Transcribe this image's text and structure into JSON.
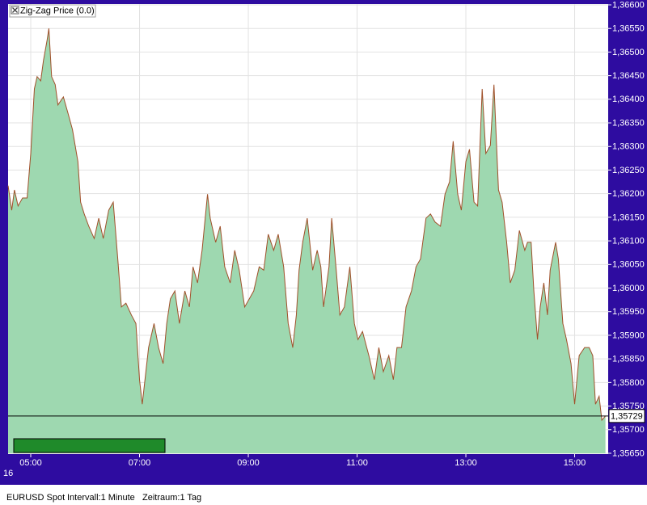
{
  "chart_data": {
    "type": "area",
    "series": [
      {
        "name": "Zig-Zag Price (0.0)",
        "color": "#a0502a",
        "fill": "#9ed8b0",
        "values": [
          1.36217,
          1.36165,
          1.36208,
          1.36174,
          1.36191,
          1.36191,
          1.36285,
          1.36422,
          1.36448,
          1.36439,
          1.36482,
          1.36525,
          1.3655,
          1.36448,
          1.36431,
          1.36388,
          1.36405,
          1.36371,
          1.36336,
          1.36268,
          1.36182,
          1.36157,
          1.36131,
          1.36105,
          1.36148,
          1.36105,
          1.36165,
          1.36182,
          1.36062,
          1.3596,
          1.35968,
          1.35943,
          1.35925,
          1.35806,
          1.35754,
          1.35823,
          1.35874,
          1.35925,
          1.35874,
          1.3584,
          1.35925,
          1.35977,
          1.35994,
          1.35925,
          1.35994,
          1.3596,
          1.36045,
          1.36011,
          1.3608,
          1.36199,
          1.36148,
          1.36097,
          1.36131,
          1.36045,
          1.36011,
          1.3608,
          1.36038,
          1.3596,
          1.35977,
          1.35994,
          1.36045,
          1.36038,
          1.36114,
          1.3608,
          1.36114,
          1.36045,
          1.35925,
          1.35874,
          1.35943,
          1.36038,
          1.36097,
          1.36148,
          1.36038,
          1.3608,
          1.36045,
          1.3596,
          1.36045,
          1.36148,
          1.36038,
          1.35943,
          1.3596,
          1.36045,
          1.35925,
          1.35891,
          1.35908,
          1.35857,
          1.35806,
          1.35874,
          1.35823,
          1.35857,
          1.35806,
          1.35874,
          1.35874,
          1.3596,
          1.35994,
          1.36045,
          1.36062,
          1.36148,
          1.36157,
          1.3614,
          1.36131,
          1.36199,
          1.36225,
          1.36311,
          1.36199,
          1.36165,
          1.36268,
          1.36294,
          1.36182,
          1.36174,
          1.36422,
          1.36285,
          1.36302,
          1.36431,
          1.36208,
          1.36182,
          1.36097,
          1.36011,
          1.36038,
          1.36122,
          1.3608,
          1.36097,
          1.36097,
          1.35994,
          1.35891,
          1.3596,
          1.36011,
          1.35943,
          1.36038,
          1.36097,
          1.36062,
          1.35925,
          1.35891,
          1.3584,
          1.35754,
          1.35857,
          1.35874,
          1.35874,
          1.35857,
          1.35754,
          1.35771,
          1.3572,
          1.35729
        ]
      }
    ],
    "x": [
      "04:35",
      "04:39",
      "04:42",
      "04:46",
      "04:51",
      "04:56",
      "05:00",
      "05:04",
      "05:07",
      "05:11",
      "05:14",
      "05:18",
      "05:20",
      "05:23",
      "05:27",
      "05:30",
      "05:36",
      "05:41",
      "05:46",
      "05:52",
      "05:55",
      "05:59",
      "06:04",
      "06:10",
      "06:15",
      "06:20",
      "06:26",
      "06:31",
      "06:36",
      "06:40",
      "06:45",
      "06:51",
      "06:56",
      "07:00",
      "07:03",
      "07:07",
      "07:10",
      "07:16",
      "07:21",
      "07:26",
      "07:30",
      "07:34",
      "07:39",
      "07:44",
      "07:50",
      "07:55",
      "07:59",
      "08:04",
      "08:09",
      "08:15",
      "08:18",
      "08:24",
      "08:29",
      "08:34",
      "08:40",
      "08:45",
      "08:50",
      "08:56",
      "09:01",
      "09:06",
      "09:12",
      "09:17",
      "09:22",
      "09:28",
      "09:33",
      "09:39",
      "09:44",
      "09:49",
      "09:53",
      "09:56",
      "10:00",
      "10:05",
      "10:11",
      "10:16",
      "10:20",
      "10:23",
      "10:29",
      "10:32",
      "10:37",
      "10:41",
      "10:46",
      "10:52",
      "10:57",
      "11:01",
      "11:06",
      "11:13",
      "11:19",
      "11:24",
      "11:29",
      "11:35",
      "11:40",
      "11:44",
      "11:49",
      "11:54",
      "12:00",
      "12:05",
      "12:10",
      "12:16",
      "12:21",
      "12:26",
      "12:32",
      "12:37",
      "12:42",
      "12:46",
      "12:51",
      "12:55",
      "13:00",
      "13:04",
      "13:09",
      "13:13",
      "13:18",
      "13:22",
      "13:27",
      "13:31",
      "13:36",
      "13:40",
      "13:45",
      "13:49",
      "13:54",
      "13:59",
      "14:05",
      "14:08",
      "14:12",
      "14:15",
      "14:19",
      "14:22",
      "14:26",
      "14:30",
      "14:33",
      "14:39",
      "14:42",
      "14:47",
      "14:51",
      "14:56",
      "15:00",
      "15:05",
      "15:11",
      "15:16",
      "15:20",
      "15:23",
      "15:27",
      "15:30",
      "15:34"
    ],
    "xlim": [
      "04:35",
      "15:37"
    ],
    "xticks": [
      "05:00",
      "07:00",
      "09:00",
      "11:00",
      "13:00",
      "15:00"
    ],
    "x_day_label": "16",
    "ylim": [
      1.3565,
      1.366
    ],
    "yticks": [
      {
        "value": 1.366,
        "label": "1,36600"
      },
      {
        "value": 1.3655,
        "label": "1,36550"
      },
      {
        "value": 1.365,
        "label": "1,36500"
      },
      {
        "value": 1.3645,
        "label": "1,36450"
      },
      {
        "value": 1.364,
        "label": "1,36400"
      },
      {
        "value": 1.3635,
        "label": "1,36350"
      },
      {
        "value": 1.363,
        "label": "1,36300"
      },
      {
        "value": 1.3625,
        "label": "1,36250"
      },
      {
        "value": 1.362,
        "label": "1,36200"
      },
      {
        "value": 1.3615,
        "label": "1,36150"
      },
      {
        "value": 1.361,
        "label": "1,36100"
      },
      {
        "value": 1.3605,
        "label": "1,36050"
      },
      {
        "value": 1.36,
        "label": "1,36000"
      },
      {
        "value": 1.3595,
        "label": "1,35950"
      },
      {
        "value": 1.359,
        "label": "1,35900"
      },
      {
        "value": 1.3585,
        "label": "1,35850"
      },
      {
        "value": 1.358,
        "label": "1,35800"
      },
      {
        "value": 1.3575,
        "label": "1,35750"
      },
      {
        "value": 1.357,
        "label": "1,35700"
      },
      {
        "value": 1.3565,
        "label": "1,35650"
      }
    ],
    "current_price": {
      "value": 1.35729,
      "label": "1,35729"
    },
    "grid": true,
    "footer": [
      "EURUSD Spot",
      "Intervall:1 Minute",
      "Zeitraum:1 Tag"
    ]
  }
}
